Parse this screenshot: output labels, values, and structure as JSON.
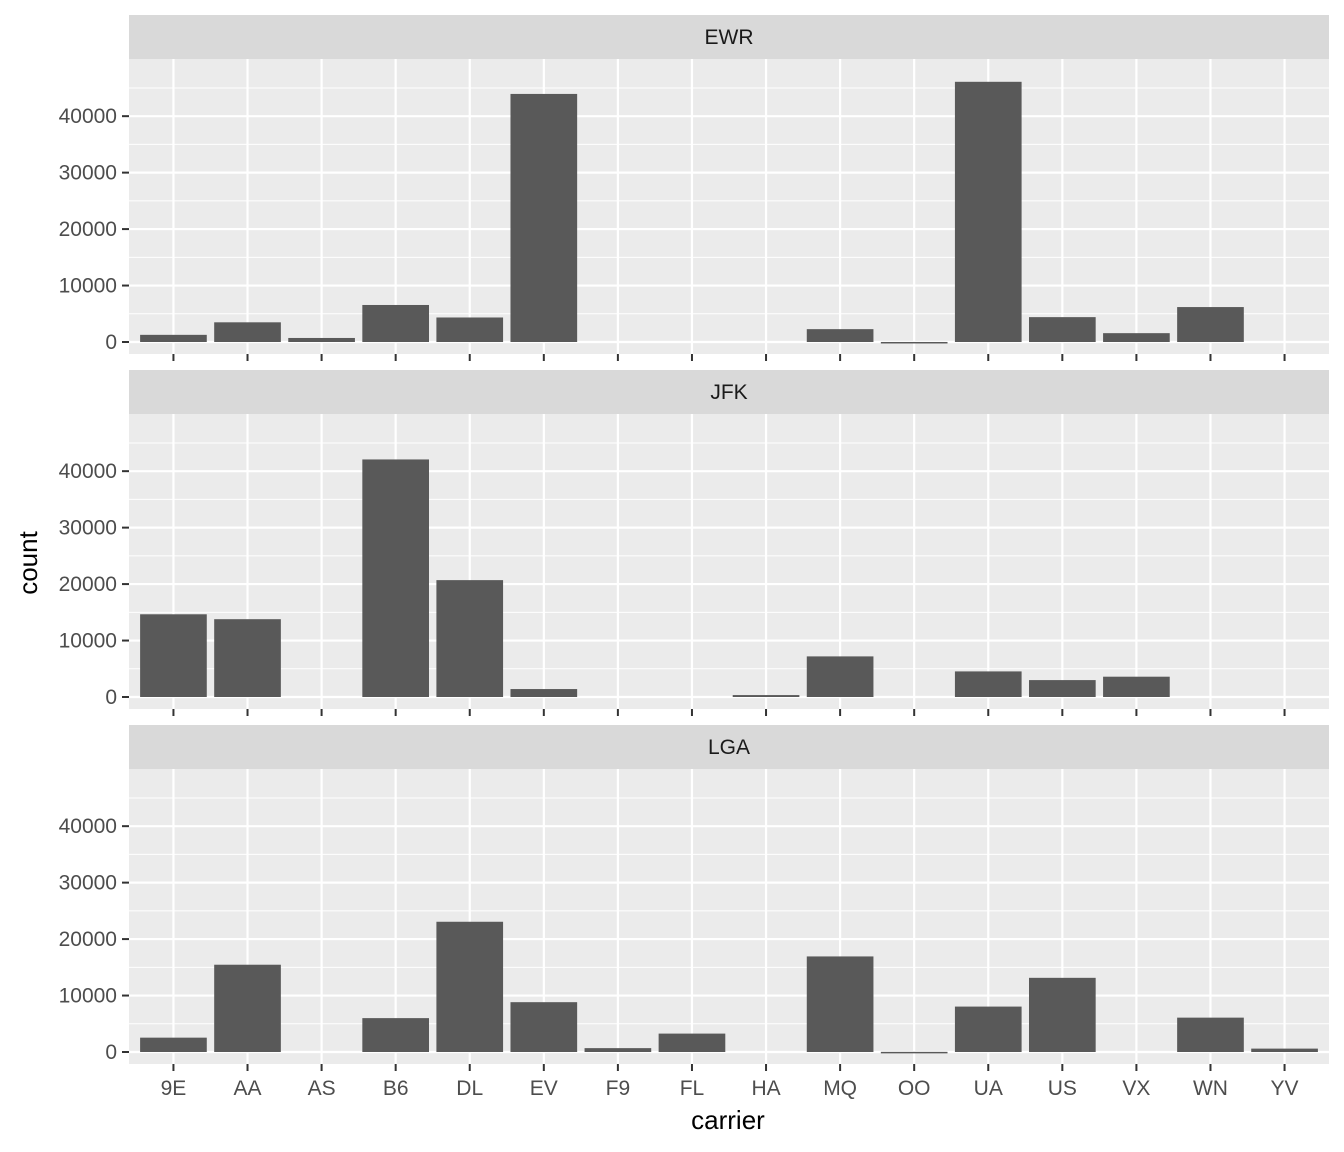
{
  "chart_data": {
    "type": "bar",
    "facet_by": "origin",
    "xlabel": "carrier",
    "ylabel": "count",
    "ylim": [
      0,
      48000
    ],
    "yticks": [
      0,
      10000,
      20000,
      30000,
      40000
    ],
    "grid": true,
    "categories": [
      "9E",
      "AA",
      "AS",
      "B6",
      "DL",
      "EV",
      "F9",
      "FL",
      "HA",
      "MQ",
      "OO",
      "UA",
      "US",
      "VX",
      "WN",
      "YV"
    ],
    "panels": [
      {
        "name": "EWR",
        "values": [
          1268,
          3487,
          714,
          6557,
          4342,
          43939,
          0,
          0,
          0,
          2276,
          6,
          46087,
          4405,
          1566,
          6188,
          0
        ]
      },
      {
        "name": "JFK",
        "values": [
          14651,
          13783,
          0,
          42076,
          20701,
          1408,
          0,
          0,
          342,
          7193,
          0,
          4534,
          2995,
          3596,
          0,
          0
        ]
      },
      {
        "name": "LGA",
        "values": [
          2541,
          15459,
          0,
          6002,
          23067,
          8826,
          685,
          3260,
          0,
          16928,
          26,
          8044,
          13136,
          0,
          6087,
          601
        ]
      }
    ],
    "colors": {
      "bar": "#595959",
      "panel_bg": "#ebebeb",
      "strip_bg": "#d9d9d9",
      "grid": "#ffffff"
    }
  }
}
